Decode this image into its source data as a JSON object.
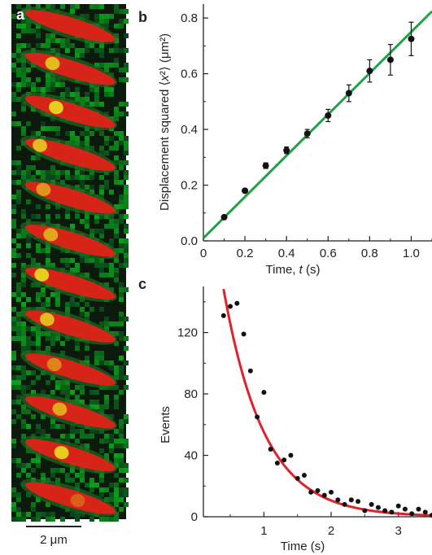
{
  "panels": {
    "a": "a",
    "b": "b",
    "c": "c"
  },
  "scale_bar": "2 μm",
  "micrograph": {
    "frames": 12,
    "spot_offsets": [
      0.05,
      0.32,
      0.36,
      0.18,
      0.22,
      0.3,
      0.2,
      0.26,
      0.34,
      0.4,
      0.42,
      0.6
    ],
    "spot_strengths": [
      0.0,
      0.8,
      0.9,
      0.8,
      0.6,
      0.7,
      0.9,
      0.8,
      0.5,
      0.7,
      0.9,
      0.3
    ],
    "colors": {
      "background": "#0b1a0d",
      "green": "#1f7a2a",
      "red": "#d62418",
      "yellow": "#e8e020"
    }
  },
  "chart_data": [
    {
      "panel": "b",
      "type": "scatter",
      "xlabel_parts": [
        "Time, ",
        "t",
        " (s)"
      ],
      "ylabel_parts": [
        "Displacement squared ⟨",
        "x",
        "²⟩ (μm²)"
      ],
      "xlim": [
        0,
        1.1
      ],
      "ylim": [
        0,
        0.85
      ],
      "xticks": [
        0,
        0.2,
        0.4,
        0.6,
        0.8,
        1.0
      ],
      "xtick_labels": [
        "0",
        "0.2",
        "0.4",
        "0.6",
        "0.8",
        "1.0"
      ],
      "yticks": [
        0,
        0.2,
        0.4,
        0.6,
        0.8
      ],
      "ytick_labels": [
        "0.0",
        "0.2",
        "0.4",
        "0.6",
        "0.8"
      ],
      "points": {
        "x": [
          0.1,
          0.2,
          0.3,
          0.4,
          0.5,
          0.6,
          0.7,
          0.8,
          0.9,
          1.0
        ],
        "y": [
          0.085,
          0.18,
          0.27,
          0.325,
          0.385,
          0.45,
          0.53,
          0.61,
          0.65,
          0.725
        ],
        "err": [
          0.0,
          0.0,
          0.01,
          0.012,
          0.015,
          0.022,
          0.03,
          0.04,
          0.055,
          0.06
        ]
      },
      "fit": {
        "slope": 0.74,
        "intercept": 0.01,
        "color": "#22a046"
      },
      "grid": false,
      "legend": "none"
    },
    {
      "panel": "c",
      "type": "scatter",
      "xlabel": "Time (s)",
      "ylabel": "Events",
      "xlim": [
        0.1,
        3.5
      ],
      "ylim": [
        0,
        150
      ],
      "xticks": [
        1,
        2,
        3
      ],
      "xtick_labels": [
        "1",
        "2",
        "3"
      ],
      "yticks": [
        0,
        40,
        80,
        120
      ],
      "ytick_labels": [
        "0",
        "40",
        "80",
        "120"
      ],
      "points": {
        "x": [
          0.4,
          0.5,
          0.6,
          0.7,
          0.8,
          0.9,
          1.0,
          1.1,
          1.2,
          1.3,
          1.4,
          1.5,
          1.6,
          1.7,
          1.8,
          1.9,
          2.0,
          2.1,
          2.2,
          2.3,
          2.4,
          2.5,
          2.6,
          2.7,
          2.8,
          2.9,
          3.0,
          3.1,
          3.2,
          3.3,
          3.4,
          3.5
        ],
        "y": [
          131,
          137,
          139,
          119,
          95,
          65,
          81,
          44,
          35,
          37,
          40,
          25,
          27,
          16,
          17,
          14,
          16,
          11,
          8,
          11,
          10,
          4,
          8,
          6,
          4,
          3,
          7,
          5,
          2,
          5,
          3,
          1
        ]
      },
      "fit": {
        "amplitude": 287,
        "rate": 1.65,
        "x_start": 0.4,
        "color": "#e0202a"
      },
      "grid": false,
      "legend": "none"
    }
  ]
}
